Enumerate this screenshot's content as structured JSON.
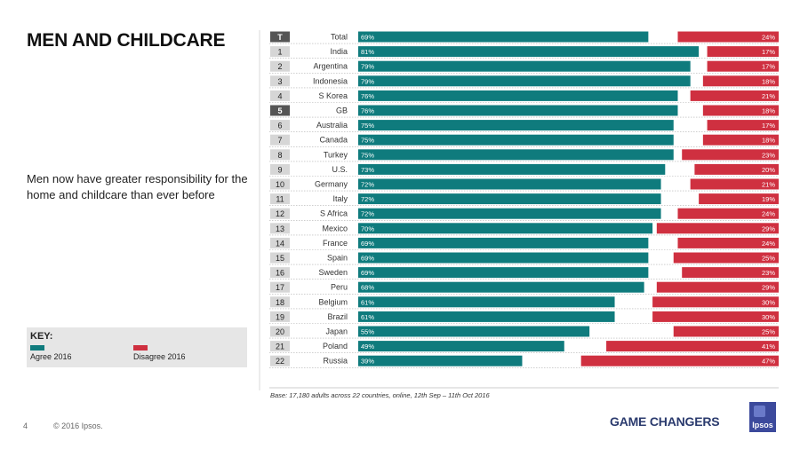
{
  "title": "MEN AND CHILDCARE",
  "subtitle": "Men now have greater responsibility for the home and childcare than ever before",
  "key": {
    "title": "KEY:",
    "agree_label": "Agree 2016",
    "disagree_label": "Disagree 2016"
  },
  "footer": {
    "page": "4",
    "copyright": "© 2016 Ipsos.",
    "base": "Base: 17,180 adults across 22 countries, online, 12th Sep – 11th Oct 2016",
    "brand": "GAME CHANGERS",
    "logo": "Ipsos"
  },
  "colors": {
    "agree": "#0f7b7d",
    "disagree": "#cf3040",
    "rank_bg": "#d6d6d6",
    "rank_highlight": "#555555"
  },
  "chart_data": {
    "type": "bar",
    "orientation": "horizontal-diverging",
    "categories": [
      "Total",
      "India",
      "Argentina",
      "Indonesia",
      "S Korea",
      "GB",
      "Australia",
      "Canada",
      "Turkey",
      "U.S.",
      "Germany",
      "Italy",
      "S Africa",
      "Mexico",
      "France",
      "Spain",
      "Sweden",
      "Peru",
      "Belgium",
      "Brazil",
      "Japan",
      "Poland",
      "Russia"
    ],
    "ranks": [
      "T",
      "1",
      "2",
      "3",
      "4",
      "5",
      "6",
      "7",
      "8",
      "9",
      "10",
      "11",
      "12",
      "13",
      "14",
      "15",
      "16",
      "17",
      "18",
      "19",
      "20",
      "21",
      "22"
    ],
    "highlight_rank": "5",
    "series": [
      {
        "name": "Agree 2016",
        "values": [
          69,
          81,
          79,
          79,
          76,
          76,
          75,
          75,
          75,
          73,
          72,
          72,
          72,
          70,
          69,
          69,
          69,
          68,
          61,
          61,
          55,
          49,
          39
        ]
      },
      {
        "name": "Disagree 2016",
        "values": [
          24,
          17,
          17,
          18,
          21,
          18,
          17,
          18,
          23,
          20,
          21,
          19,
          24,
          29,
          24,
          25,
          23,
          29,
          30,
          30,
          25,
          41,
          47
        ]
      }
    ],
    "value_suffix": "%",
    "xlim": [
      0,
      100
    ]
  }
}
